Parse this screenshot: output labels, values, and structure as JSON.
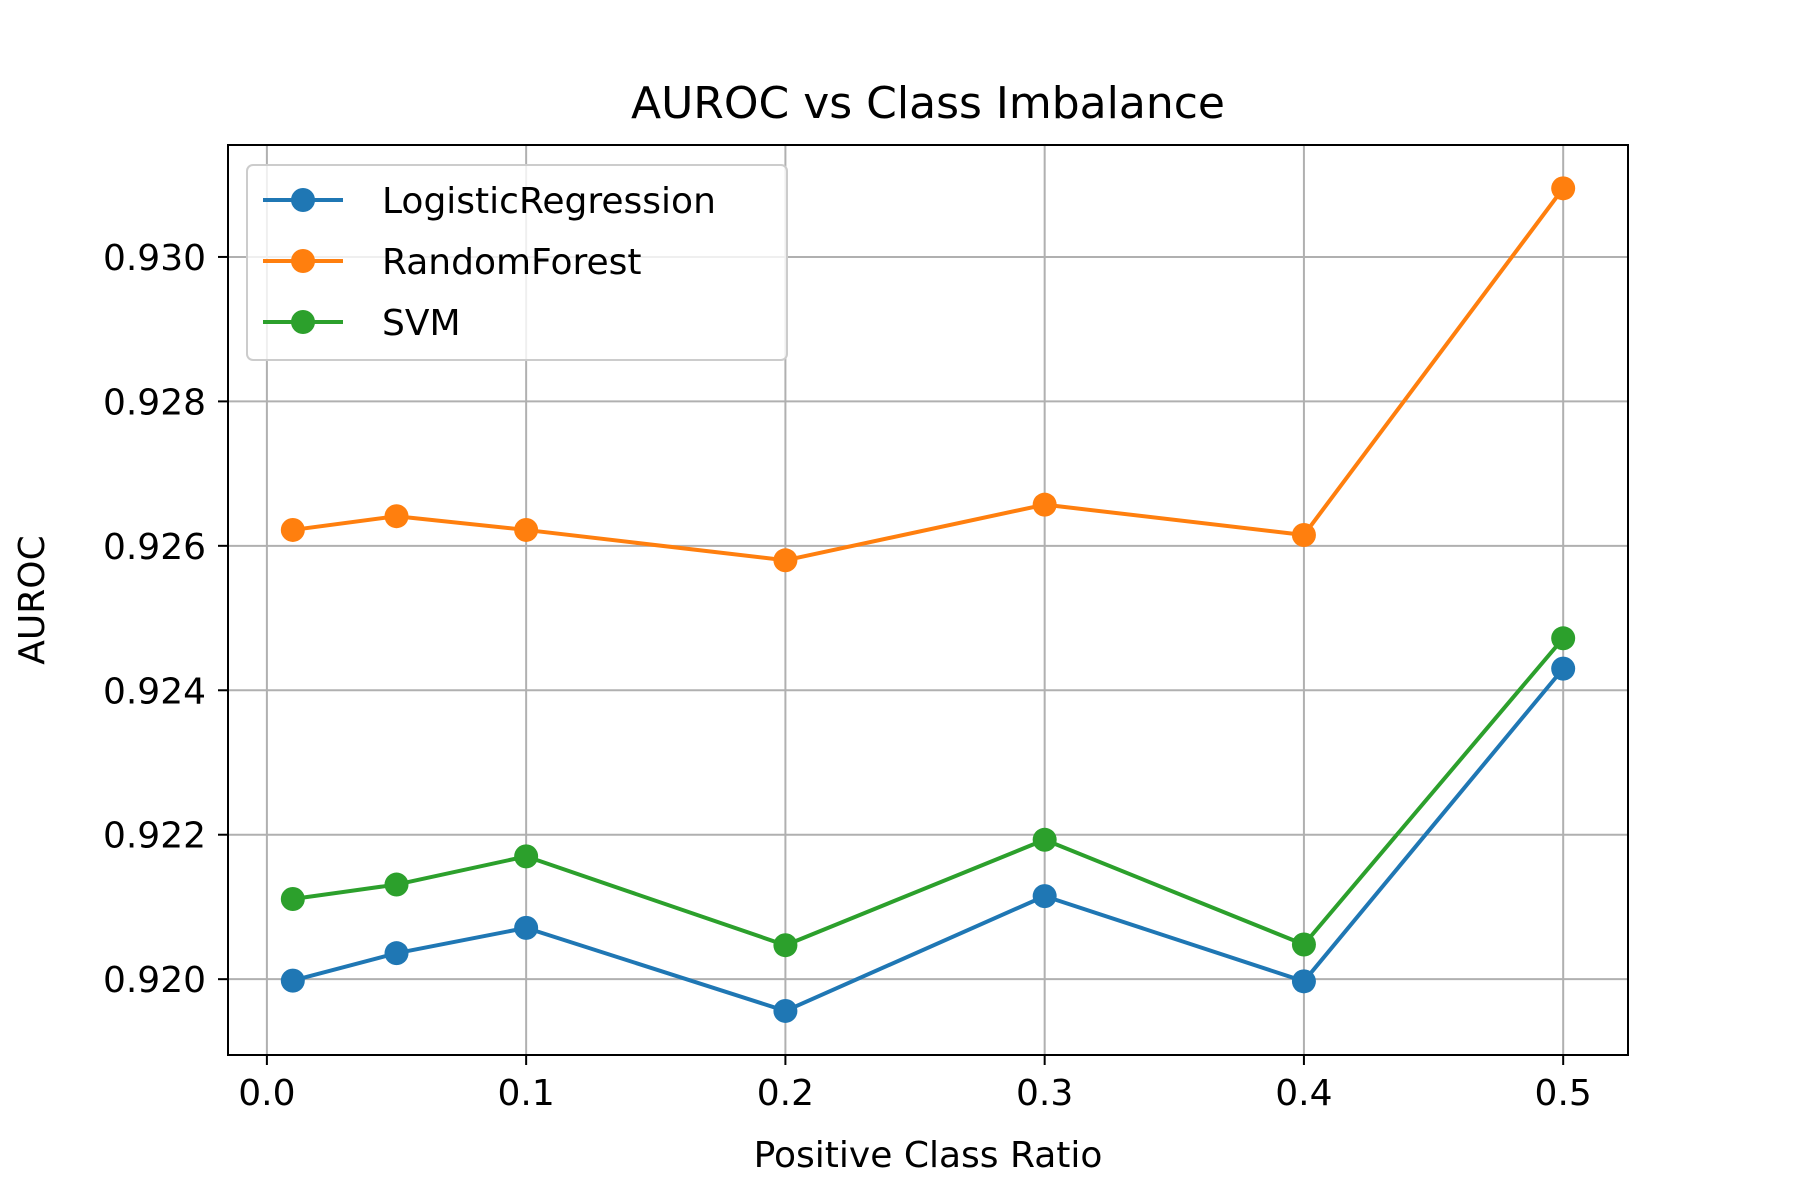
{
  "chart_data": {
    "type": "line",
    "title": "AUROC vs Class Imbalance",
    "xlabel": "Positive Class Ratio",
    "ylabel": "AUROC",
    "x": [
      0.01,
      0.05,
      0.1,
      0.2,
      0.3,
      0.4,
      0.5
    ],
    "xlim": [
      -0.015,
      0.525
    ],
    "ylim": [
      0.91895,
      0.93155
    ],
    "xticks": [
      0.0,
      0.1,
      0.2,
      0.3,
      0.4,
      0.5
    ],
    "xtick_labels": [
      "0.0",
      "0.1",
      "0.2",
      "0.3",
      "0.4",
      "0.5"
    ],
    "yticks": [
      0.92,
      0.922,
      0.924,
      0.926,
      0.928,
      0.93
    ],
    "ytick_labels": [
      "0.920",
      "0.922",
      "0.924",
      "0.926",
      "0.928",
      "0.930"
    ],
    "grid": true,
    "legend_position": "upper-left",
    "series": [
      {
        "name": "LogisticRegression",
        "color": "#1f77b4",
        "marker": "circle",
        "values": [
          0.91998,
          0.92036,
          0.92071,
          0.91956,
          0.92115,
          0.91997,
          0.9243
        ]
      },
      {
        "name": "RandomForest",
        "color": "#ff7f0e",
        "marker": "circle",
        "values": [
          0.92622,
          0.92641,
          0.92622,
          0.9258,
          0.92657,
          0.92615,
          0.93095
        ]
      },
      {
        "name": "SVM",
        "color": "#2ca02c",
        "marker": "circle",
        "values": [
          0.92111,
          0.92131,
          0.9217,
          0.92047,
          0.92193,
          0.92048,
          0.92472
        ]
      }
    ]
  }
}
